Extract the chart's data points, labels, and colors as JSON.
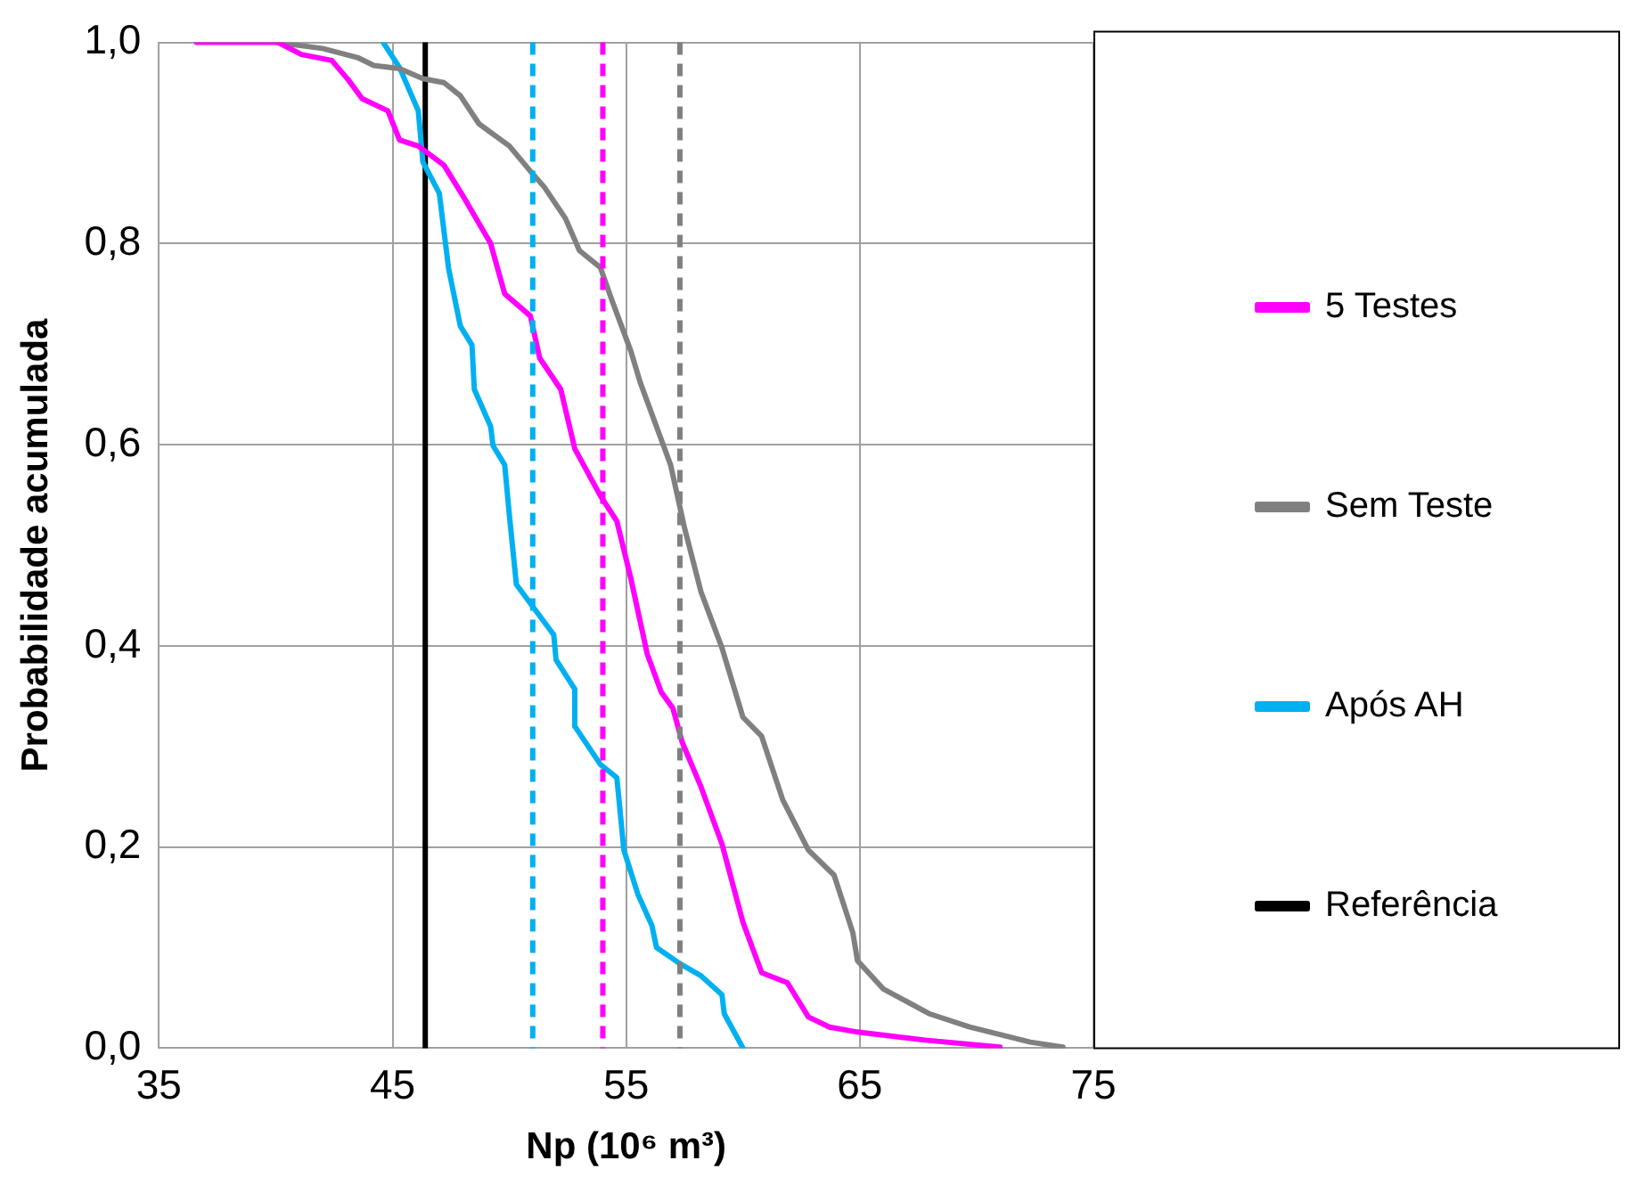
{
  "chart_data": {
    "type": "line",
    "xlabel": "Np (10⁶ m³)",
    "ylabel": "Probabilidade acumulada",
    "xlim": [
      35,
      75
    ],
    "xticks": [
      35,
      45,
      55,
      65,
      75
    ],
    "ylim": [
      0,
      1
    ],
    "yticks": [
      {
        "value": 0,
        "label": "0,0"
      },
      {
        "value": 0.2,
        "label": "0,2"
      },
      {
        "value": 0.4,
        "label": "0,4"
      },
      {
        "value": 0.6,
        "label": "0,6"
      },
      {
        "value": 0.8,
        "label": "0,8"
      },
      {
        "value": 1,
        "label": "1,0"
      }
    ],
    "grid": true,
    "legend": "right",
    "line_style": "solid",
    "series": [
      {
        "name": "5 Testes",
        "color": "#ff00ff",
        "x": [
          36.6,
          40.1,
          41.1,
          42.4,
          43.1,
          43.7,
          44.8,
          45.3,
          46.1,
          47.2,
          48.1,
          49.2,
          49.8,
          50.9,
          51.3,
          52.2,
          52.8,
          53.9,
          54.6,
          55.0,
          55.2,
          55.9,
          56.5,
          57.0,
          57.4,
          58.2,
          59.1,
          60.0,
          60.8,
          61.9,
          62.8,
          63.7,
          64.9,
          67.8,
          71.0
        ],
        "values": [
          1.0,
          1.0,
          0.988,
          0.982,
          0.963,
          0.944,
          0.932,
          0.903,
          0.897,
          0.878,
          0.844,
          0.8,
          0.75,
          0.728,
          0.686,
          0.655,
          0.596,
          0.549,
          0.524,
          0.486,
          0.467,
          0.392,
          0.354,
          0.338,
          0.304,
          0.26,
          0.203,
          0.125,
          0.075,
          0.065,
          0.031,
          0.021,
          0.016,
          0.008,
          0.001
        ]
      },
      {
        "name": "Sem Teste",
        "color": "#808080",
        "x": [
          40.0,
          42.0,
          43.5,
          44.2,
          45.3,
          46.3,
          47.2,
          47.9,
          48.7,
          50.0,
          50.9,
          51.5,
          52.4,
          53.0,
          53.9,
          54.4,
          55.2,
          55.6,
          56.9,
          57.5,
          58.2,
          59.1,
          60.0,
          60.8,
          61.7,
          62.8,
          63.9,
          64.7,
          64.9,
          66.0,
          68.0,
          69.7,
          72.3,
          73.7
        ],
        "values": [
          1.0,
          0.994,
          0.985,
          0.977,
          0.974,
          0.964,
          0.96,
          0.947,
          0.919,
          0.897,
          0.872,
          0.856,
          0.825,
          0.793,
          0.776,
          0.743,
          0.693,
          0.662,
          0.58,
          0.517,
          0.454,
          0.398,
          0.329,
          0.31,
          0.247,
          0.197,
          0.172,
          0.115,
          0.087,
          0.059,
          0.034,
          0.021,
          0.006,
          0.001
        ]
      },
      {
        "name": "Após AH",
        "color": "#00b0f0",
        "x": [
          44.6,
          45.3,
          46.1,
          46.3,
          47.0,
          47.4,
          47.9,
          48.4,
          48.5,
          49.2,
          49.3,
          49.8,
          50.0,
          50.3,
          51.1,
          51.9,
          52.0,
          52.8,
          52.8,
          53.9,
          54.6,
          54.9,
          55.5,
          56.1,
          56.3,
          57.3,
          58.2,
          59.1,
          59.2,
          60.0
        ],
        "values": [
          1.0,
          0.975,
          0.932,
          0.881,
          0.85,
          0.775,
          0.718,
          0.699,
          0.655,
          0.618,
          0.599,
          0.58,
          0.53,
          0.461,
          0.436,
          0.411,
          0.386,
          0.357,
          0.32,
          0.282,
          0.269,
          0.197,
          0.153,
          0.122,
          0.1,
          0.084,
          0.072,
          0.053,
          0.034,
          0.0
        ]
      },
      {
        "name": "Referência",
        "color": "#000000",
        "x": [
          46.4,
          46.4
        ],
        "values": [
          0,
          1
        ]
      }
    ],
    "ref_lines": [
      {
        "axis": "x",
        "value": 51.0,
        "color": "#00b0f0",
        "line_style": "dashed"
      },
      {
        "axis": "x",
        "value": 54.0,
        "color": "#ff00ff",
        "line_style": "dashed"
      },
      {
        "axis": "x",
        "value": 57.3,
        "color": "#808080",
        "line_style": "dashed"
      }
    ]
  }
}
